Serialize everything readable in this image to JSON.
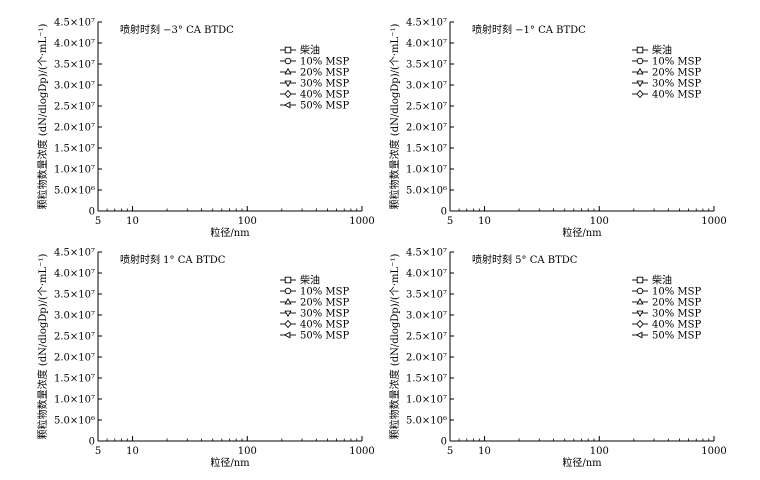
{
  "chart_data": [
    {
      "type": "line",
      "title": "喷射时刻 −3° CA BTDC",
      "xlabel": "粒径/nm",
      "ylabel": "颗粒物数量浓度 (dN/dlogDp)/(个·mL⁻¹)",
      "xscale": "log",
      "xlim": [
        5,
        1000
      ],
      "ylim": [
        0,
        45000000
      ],
      "x_ticks": [
        "5",
        "10",
        "100",
        "1000"
      ],
      "y_ticks": [
        "0",
        "5.0×10⁶",
        "1.0×10⁷",
        "1.5×10⁷",
        "2.0×10⁷",
        "2.5×10⁷",
        "3.0×10⁷",
        "3.5×10⁷",
        "4.0×10⁷",
        "4.5×10⁷"
      ],
      "legend_position": "top-right",
      "series": [
        {
          "name": "柴油",
          "marker": "square",
          "x": [],
          "y": []
        },
        {
          "name": "10% MSP",
          "marker": "circle",
          "x": [],
          "y": []
        },
        {
          "name": "20% MSP",
          "marker": "triangle-up",
          "x": [],
          "y": []
        },
        {
          "name": "30% MSP",
          "marker": "triangle-down",
          "x": [],
          "y": []
        },
        {
          "name": "40% MSP",
          "marker": "diamond",
          "x": [],
          "y": []
        },
        {
          "name": "50% MSP",
          "marker": "triangle-left",
          "x": [],
          "y": []
        }
      ]
    },
    {
      "type": "line",
      "title": "喷射时刻 −1° CA BTDC",
      "xlabel": "粒径/nm",
      "ylabel": "颗粒物数量浓度 (dN/dlogDp)/(个·mL⁻¹)",
      "xscale": "log",
      "xlim": [
        5,
        1000
      ],
      "ylim": [
        0,
        45000000
      ],
      "x_ticks": [
        "5",
        "10",
        "100",
        "1000"
      ],
      "y_ticks": [
        "0",
        "5.0×10⁶",
        "1.0×10⁷",
        "1.5×10⁷",
        "2.0×10⁷",
        "2.5×10⁷",
        "3.0×10⁷",
        "3.5×10⁷",
        "4.0×10⁷",
        "4.5×10⁷"
      ],
      "legend_position": "top-right",
      "series": [
        {
          "name": "柴油",
          "marker": "square",
          "x": [],
          "y": []
        },
        {
          "name": "10% MSP",
          "marker": "circle",
          "x": [],
          "y": []
        },
        {
          "name": "20% MSP",
          "marker": "triangle-up",
          "x": [],
          "y": []
        },
        {
          "name": "30% MSP",
          "marker": "triangle-down",
          "x": [],
          "y": []
        },
        {
          "name": "40% MSP",
          "marker": "diamond",
          "x": [],
          "y": []
        }
      ]
    },
    {
      "type": "line",
      "title": "喷射时刻 1° CA BTDC",
      "xlabel": "粒径/nm",
      "ylabel": "颗粒物数量浓度 (dN/dlogDp)/(个·mL⁻¹)",
      "xscale": "log",
      "xlim": [
        5,
        1000
      ],
      "ylim": [
        0,
        45000000
      ],
      "x_ticks": [
        "5",
        "10",
        "100",
        "1000"
      ],
      "y_ticks": [
        "0",
        "5.0×10⁶",
        "1.0×10⁷",
        "1.5×10⁷",
        "2.0×10⁷",
        "2.5×10⁷",
        "3.0×10⁷",
        "3.5×10⁷",
        "4.0×10⁷",
        "4.5×10⁷"
      ],
      "legend_position": "top-right",
      "series": [
        {
          "name": "柴油",
          "marker": "square",
          "x": [],
          "y": []
        },
        {
          "name": "10% MSP",
          "marker": "circle",
          "x": [],
          "y": []
        },
        {
          "name": "20% MSP",
          "marker": "triangle-up",
          "x": [],
          "y": []
        },
        {
          "name": "30% MSP",
          "marker": "triangle-down",
          "x": [],
          "y": []
        },
        {
          "name": "40% MSP",
          "marker": "diamond",
          "x": [],
          "y": []
        },
        {
          "name": "50% MSP",
          "marker": "triangle-left",
          "x": [],
          "y": []
        }
      ]
    },
    {
      "type": "line",
      "title": "喷射时刻 5° CA BTDC",
      "xlabel": "粒径/nm",
      "ylabel": "颗粒物数量浓度 (dN/dlogDp)/(个·mL⁻¹)",
      "xscale": "log",
      "xlim": [
        5,
        1000
      ],
      "ylim": [
        0,
        45000000
      ],
      "x_ticks": [
        "5",
        "10",
        "100",
        "1000"
      ],
      "y_ticks": [
        "0",
        "5.0×10⁶",
        "1.0×10⁷",
        "1.5×10⁷",
        "2.0×10⁷",
        "2.5×10⁷",
        "3.0×10⁷",
        "3.5×10⁷",
        "4.0×10⁷",
        "4.5×10⁷"
      ],
      "legend_position": "top-right",
      "series": [
        {
          "name": "柴油",
          "marker": "square",
          "x": [],
          "y": []
        },
        {
          "name": "10% MSP",
          "marker": "circle",
          "x": [],
          "y": []
        },
        {
          "name": "20% MSP",
          "marker": "triangle-up",
          "x": [],
          "y": []
        },
        {
          "name": "30% MSP",
          "marker": "triangle-down",
          "x": [],
          "y": []
        },
        {
          "name": "40% MSP",
          "marker": "diamond",
          "x": [],
          "y": []
        },
        {
          "name": "50% MSP",
          "marker": "triangle-left",
          "x": [],
          "y": []
        }
      ]
    }
  ]
}
